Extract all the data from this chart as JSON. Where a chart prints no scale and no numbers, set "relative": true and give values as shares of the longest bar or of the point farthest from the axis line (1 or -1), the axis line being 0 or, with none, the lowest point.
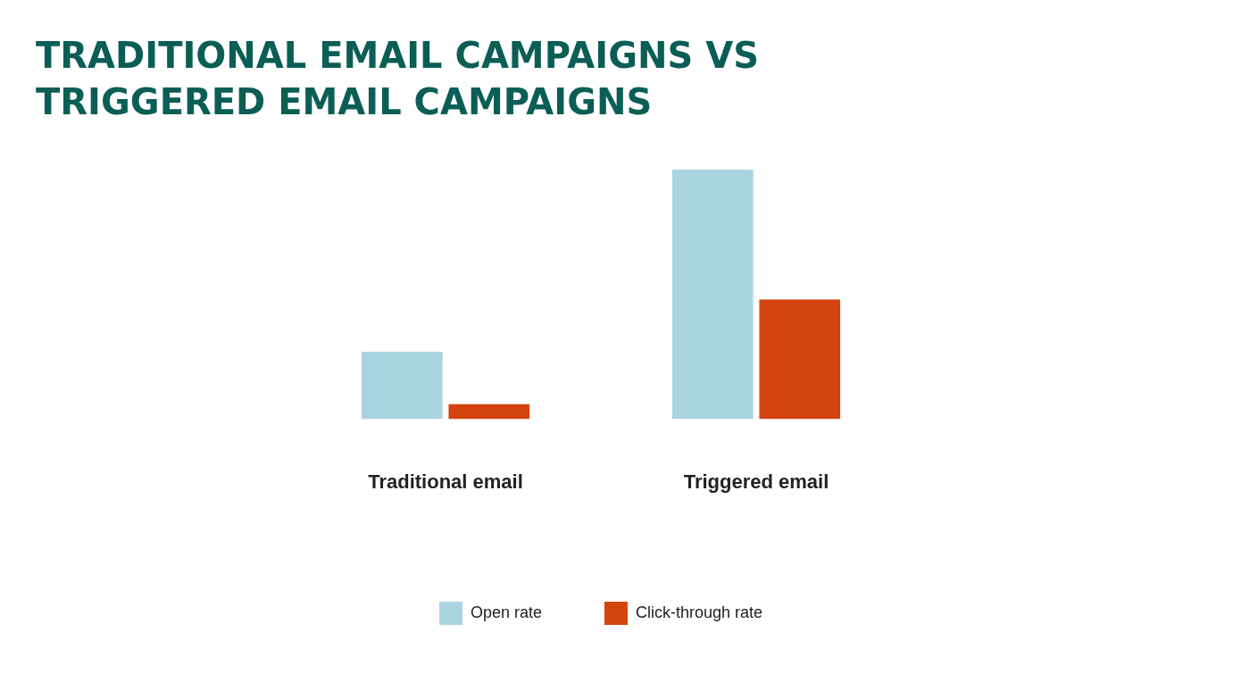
{
  "chart_data": {
    "type": "bar",
    "title": "TRADITIONAL EMAIL CAMPAIGNS VS TRIGGERED EMAIL CAMPAIGNS",
    "relative": true,
    "categories": [
      "Traditional email",
      "Triggered email"
    ],
    "series": [
      {
        "name": "Open rate",
        "color": "#a8d5df",
        "values": [
          0.27,
          1
        ]
      },
      {
        "name": "Click-through rate",
        "color": "#d4440e",
        "values": [
          0.06,
          0.48
        ]
      }
    ],
    "legend": "bottom"
  }
}
